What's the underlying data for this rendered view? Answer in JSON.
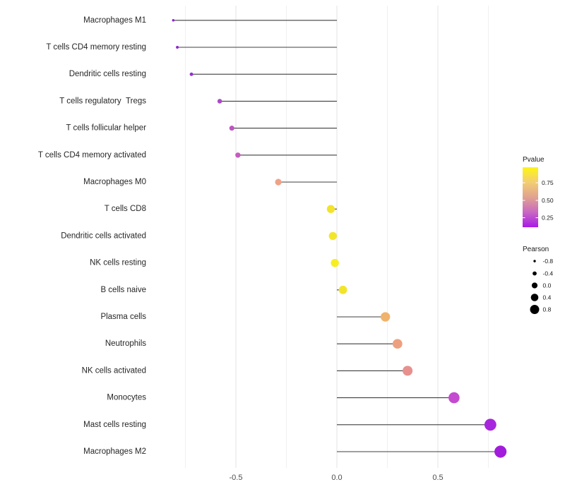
{
  "chart_data": {
    "type": "lollipop",
    "title": "",
    "xlabel": "",
    "ylabel": "",
    "x_ticks": [
      -0.5,
      0.0,
      0.5
    ],
    "x_tick_labels": [
      "-0.5",
      "0.0",
      "0.5"
    ],
    "x_minor_gridlines": [
      -0.75,
      -0.25,
      0.25,
      0.75
    ],
    "xlim": [
      -0.92,
      0.85
    ],
    "grid": "vertical-only",
    "size_encoding": "Pearson",
    "color_encoding": "Pvalue",
    "points": [
      {
        "label": "Macrophages M1",
        "pearson": -0.81,
        "pvalue_approx": 0.05,
        "color": "#8d21d2"
      },
      {
        "label": "T cells CD4 memory resting",
        "pearson": -0.79,
        "pvalue_approx": 0.06,
        "color": "#8d24d0"
      },
      {
        "label": "Dendritic cells resting",
        "pearson": -0.72,
        "pvalue_approx": 0.1,
        "color": "#9331cb"
      },
      {
        "label": "T cells regulatory  Tregs",
        "pearson": -0.58,
        "pvalue_approx": 0.22,
        "color": "#a94ac6"
      },
      {
        "label": "T cells follicular helper",
        "pearson": -0.52,
        "pvalue_approx": 0.28,
        "color": "#bc55c2"
      },
      {
        "label": "T cells CD4 memory activated",
        "pearson": -0.49,
        "pvalue_approx": 0.32,
        "color": "#c45cbd"
      },
      {
        "label": "Macrophages M0",
        "pearson": -0.29,
        "pvalue_approx": 0.55,
        "color": "#efa287"
      },
      {
        "label": "T cells CD8",
        "pearson": -0.03,
        "pvalue_approx": 0.9,
        "color": "#f2e32c"
      },
      {
        "label": "Dendritic cells activated",
        "pearson": -0.02,
        "pvalue_approx": 0.92,
        "color": "#f3e62a"
      },
      {
        "label": "NK cells resting",
        "pearson": -0.01,
        "pvalue_approx": 0.96,
        "color": "#f6ee21"
      },
      {
        "label": "B cells naive",
        "pearson": 0.03,
        "pvalue_approx": 0.9,
        "color": "#f2e42b"
      },
      {
        "label": "Plasma cells",
        "pearson": 0.24,
        "pvalue_approx": 0.62,
        "color": "#f0b36b"
      },
      {
        "label": "Neutrophils",
        "pearson": 0.3,
        "pvalue_approx": 0.55,
        "color": "#eda07f"
      },
      {
        "label": "NK cells activated",
        "pearson": 0.35,
        "pvalue_approx": 0.48,
        "color": "#e8908e"
      },
      {
        "label": "Monocytes",
        "pearson": 0.58,
        "pvalue_approx": 0.27,
        "color": "#c44ad0"
      },
      {
        "label": "Mast cells resting",
        "pearson": 0.76,
        "pvalue_approx": 0.12,
        "color": "#a726dd"
      },
      {
        "label": "Macrophages M2",
        "pearson": 0.81,
        "pvalue_approx": 0.08,
        "color": "#a21cdb"
      }
    ],
    "legend_pvalue": {
      "title": "Pvalue",
      "tick_labels": [
        "0.75",
        "0.50",
        "0.25"
      ],
      "gradient_top_to_bottom": [
        "#fdf515",
        "#f3ce73",
        "#e0a290",
        "#c968c2",
        "#a81ae8"
      ]
    },
    "legend_pearson": {
      "title": "Pearson",
      "labels": [
        "-0.8",
        "-0.4",
        "0.0",
        "0.4",
        "0.8"
      ],
      "dot_color": "#000000"
    },
    "style_colors": {
      "stem": "#3f3f3f",
      "grid_major": "#e3e3e3",
      "grid_minor": "#f0f0f0",
      "axis_text": "#4d4d4d",
      "category_text": "#262626"
    }
  }
}
